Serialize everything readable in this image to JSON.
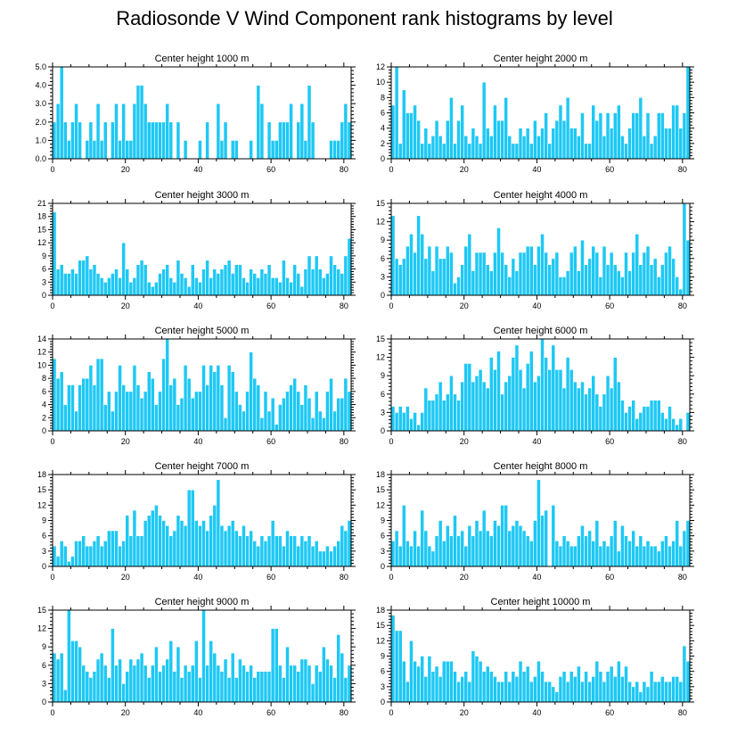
{
  "title": "Radiosonde V Wind Component rank histograms by level",
  "colors": {
    "bar": "#1ec8f4",
    "bar_edge": "#ffffff",
    "axis": "#000000"
  },
  "chart_data": [
    {
      "type": "bar",
      "title": "Center height 1000 m",
      "xlim": [
        0,
        82
      ],
      "ylim": [
        0,
        5
      ],
      "yticks": [
        0,
        1,
        2,
        3,
        4,
        5
      ],
      "ytick_labels": [
        "0.0",
        "1.0",
        "2.0",
        "3.0",
        "4.0",
        "5.0"
      ],
      "xticks": [
        0,
        20,
        40,
        60,
        80
      ],
      "values": [
        2,
        3,
        5,
        2,
        1,
        2,
        3,
        2,
        0,
        1,
        2,
        1,
        3,
        1,
        2,
        0,
        2,
        3,
        1,
        3,
        1,
        1,
        3,
        4,
        4,
        3,
        2,
        2,
        2,
        2,
        2,
        3,
        2,
        0,
        2,
        0,
        1,
        0,
        0,
        0,
        1,
        0,
        2,
        0,
        0,
        3,
        1,
        2,
        0,
        1,
        1,
        0,
        0,
        0,
        1,
        0,
        4,
        3,
        0,
        2,
        1,
        1,
        2,
        2,
        2,
        3,
        0,
        2,
        3,
        1,
        4,
        2,
        0,
        0,
        0,
        0,
        1,
        1,
        1,
        2,
        3,
        2
      ]
    },
    {
      "type": "bar",
      "title": "Center height 2000 m",
      "xlim": [
        0,
        82
      ],
      "ylim": [
        0,
        12
      ],
      "yticks": [
        0,
        2,
        4,
        6,
        8,
        10,
        12
      ],
      "ytick_labels": [
        "0",
        "2",
        "4",
        "6",
        "8",
        "10",
        "12"
      ],
      "xticks": [
        0,
        20,
        40,
        60,
        80
      ],
      "values": [
        7,
        12,
        2,
        9,
        6,
        6,
        7,
        5,
        2,
        4,
        2,
        3,
        5,
        3,
        2,
        5,
        8,
        2,
        5,
        7,
        3,
        2,
        4,
        3,
        2,
        10,
        4,
        3,
        7,
        5,
        5,
        8,
        3,
        2,
        2,
        4,
        3,
        4,
        2,
        5,
        3,
        4,
        6,
        2,
        4,
        5,
        7,
        5,
        8,
        4,
        4,
        3,
        6,
        2,
        2,
        7,
        5,
        6,
        3,
        6,
        4,
        6,
        7,
        3,
        2,
        4,
        6,
        6,
        8,
        3,
        6,
        2,
        3,
        6,
        6,
        4,
        4,
        7,
        7,
        4,
        6,
        12
      ]
    },
    {
      "type": "bar",
      "title": "Center height 3000 m",
      "xlim": [
        0,
        82
      ],
      "ylim": [
        0,
        21
      ],
      "yticks": [
        0,
        3,
        6,
        9,
        12,
        15,
        18,
        21
      ],
      "ytick_labels": [
        "0",
        "3",
        "6",
        "9",
        "12",
        "15",
        "18",
        "21"
      ],
      "xticks": [
        0,
        20,
        40,
        60,
        80
      ],
      "values": [
        19,
        6,
        7,
        5,
        5,
        6,
        5,
        8,
        8,
        9,
        6,
        7,
        5,
        4,
        3,
        4,
        5,
        6,
        4,
        12,
        6,
        3,
        4,
        7,
        8,
        7,
        3,
        2,
        3,
        5,
        6,
        7,
        4,
        3,
        8,
        5,
        4,
        2,
        7,
        4,
        3,
        6,
        8,
        4,
        6,
        5,
        6,
        7,
        8,
        5,
        7,
        7,
        4,
        3,
        6,
        5,
        4,
        6,
        5,
        7,
        4,
        4,
        3,
        8,
        4,
        3,
        7,
        5,
        2,
        6,
        9,
        6,
        9,
        6,
        4,
        5,
        9,
        7,
        6,
        5,
        9,
        13
      ]
    },
    {
      "type": "bar",
      "title": "Center height 4000 m",
      "xlim": [
        0,
        82
      ],
      "ylim": [
        0,
        15
      ],
      "yticks": [
        0,
        3,
        6,
        9,
        12,
        15
      ],
      "ytick_labels": [
        "0",
        "3",
        "6",
        "9",
        "12",
        "15"
      ],
      "xticks": [
        0,
        20,
        40,
        60,
        80
      ],
      "values": [
        13,
        6,
        5,
        6,
        8,
        10,
        7,
        13,
        10,
        6,
        8,
        4,
        8,
        6,
        6,
        8,
        7,
        2,
        3,
        5,
        8,
        10,
        4,
        7,
        7,
        7,
        5,
        4,
        7,
        11,
        7,
        5,
        3,
        6,
        4,
        7,
        7,
        8,
        8,
        5,
        8,
        10,
        7,
        5,
        6,
        7,
        3,
        3,
        4,
        7,
        8,
        4,
        9,
        5,
        6,
        8,
        7,
        3,
        8,
        5,
        7,
        5,
        4,
        3,
        7,
        4,
        7,
        10,
        5,
        7,
        8,
        5,
        6,
        3,
        5,
        7,
        8,
        6,
        3,
        1,
        15,
        9
      ]
    },
    {
      "type": "bar",
      "title": "Center height 5000 m",
      "xlim": [
        0,
        82
      ],
      "ylim": [
        0,
        14
      ],
      "yticks": [
        0,
        2,
        4,
        6,
        8,
        10,
        12,
        14
      ],
      "ytick_labels": [
        "0",
        "2",
        "4",
        "6",
        "8",
        "10",
        "12",
        "14"
      ],
      "xticks": [
        0,
        20,
        40,
        60,
        80
      ],
      "values": [
        11,
        8,
        9,
        4,
        7,
        7,
        3,
        7,
        8,
        8,
        10,
        7,
        11,
        11,
        4,
        6,
        3,
        6,
        10,
        7,
        6,
        6,
        10,
        7,
        5,
        6,
        9,
        8,
        4,
        6,
        11,
        14,
        7,
        8,
        4,
        5,
        10,
        8,
        5,
        6,
        6,
        10,
        7,
        10,
        9,
        10,
        7,
        2,
        10,
        9,
        6,
        4,
        3,
        6,
        12,
        8,
        7,
        2,
        6,
        3,
        5,
        1,
        4,
        5,
        6,
        7,
        8,
        6,
        4,
        7,
        5,
        2,
        6,
        3,
        2,
        6,
        8,
        3,
        5,
        5,
        8,
        6
      ]
    },
    {
      "type": "bar",
      "title": "Center height 6000 m",
      "xlim": [
        0,
        82
      ],
      "ylim": [
        0,
        15
      ],
      "yticks": [
        0,
        3,
        6,
        9,
        12,
        15
      ],
      "ytick_labels": [
        "0",
        "3",
        "6",
        "9",
        "12",
        "15"
      ],
      "xticks": [
        0,
        20,
        40,
        60,
        80
      ],
      "values": [
        4,
        3,
        4,
        3,
        4,
        2,
        3,
        1,
        3,
        7,
        5,
        5,
        6,
        8,
        5,
        6,
        9,
        6,
        5,
        8,
        11,
        11,
        8,
        9,
        10,
        8,
        7,
        12,
        10,
        13,
        6,
        8,
        9,
        12,
        14,
        10,
        7,
        11,
        13,
        8,
        9,
        15,
        12,
        10,
        14,
        10,
        10,
        7,
        12,
        10,
        8,
        7,
        8,
        6,
        7,
        9,
        6,
        4,
        6,
        9,
        7,
        12,
        8,
        5,
        3,
        4,
        5,
        2,
        3,
        4,
        4,
        5,
        5,
        5,
        3,
        2,
        4,
        2,
        1,
        2,
        0,
        3
      ]
    },
    {
      "type": "bar",
      "title": "Center height 7000 m",
      "xlim": [
        0,
        82
      ],
      "ylim": [
        0,
        18
      ],
      "yticks": [
        0,
        3,
        6,
        9,
        12,
        15,
        18
      ],
      "ytick_labels": [
        "0",
        "3",
        "6",
        "9",
        "12",
        "15",
        "18"
      ],
      "xticks": [
        0,
        20,
        40,
        60,
        80
      ],
      "values": [
        4,
        2,
        5,
        4,
        1,
        2,
        5,
        5,
        6,
        4,
        4,
        5,
        6,
        4,
        5,
        7,
        7,
        7,
        4,
        5,
        10,
        6,
        11,
        6,
        6,
        9,
        10,
        11,
        12,
        10,
        9,
        8,
        6,
        7,
        10,
        9,
        8,
        15,
        15,
        9,
        8,
        9,
        7,
        10,
        12,
        17,
        8,
        7,
        8,
        9,
        7,
        6,
        8,
        6,
        7,
        5,
        4,
        6,
        5,
        6,
        9,
        6,
        6,
        4,
        7,
        6,
        6,
        4,
        6,
        5,
        6,
        4,
        5,
        3,
        3,
        4,
        3,
        4,
        5,
        8,
        7,
        9
      ]
    },
    {
      "type": "bar",
      "title": "Center height 8000 m",
      "xlim": [
        0,
        82
      ],
      "ylim": [
        0,
        18
      ],
      "yticks": [
        0,
        3,
        6,
        9,
        12,
        15,
        18
      ],
      "ytick_labels": [
        "0",
        "3",
        "6",
        "9",
        "12",
        "15",
        "18"
      ],
      "xticks": [
        0,
        20,
        40,
        60,
        80
      ],
      "values": [
        5,
        7,
        4,
        12,
        5,
        4,
        7,
        4,
        11,
        7,
        4,
        3,
        6,
        9,
        5,
        8,
        6,
        10,
        6,
        7,
        4,
        8,
        6,
        9,
        7,
        11,
        7,
        6,
        9,
        8,
        12,
        12,
        7,
        8,
        9,
        8,
        7,
        6,
        5,
        9,
        17,
        10,
        11,
        0,
        12,
        5,
        4,
        6,
        5,
        4,
        4,
        6,
        8,
        6,
        7,
        5,
        9,
        4,
        5,
        4,
        6,
        9,
        3,
        8,
        6,
        5,
        7,
        4,
        6,
        4,
        5,
        4,
        4,
        3,
        5,
        6,
        4,
        5,
        9,
        4,
        7,
        9
      ]
    },
    {
      "type": "bar",
      "title": "Center height 9000 m",
      "xlim": [
        0,
        82
      ],
      "ylim": [
        0,
        15
      ],
      "yticks": [
        0,
        3,
        6,
        9,
        12,
        15
      ],
      "ytick_labels": [
        "0",
        "3",
        "6",
        "9",
        "12",
        "15"
      ],
      "xticks": [
        0,
        20,
        40,
        60,
        80
      ],
      "values": [
        8,
        7,
        8,
        2,
        15,
        10,
        10,
        9,
        6,
        5,
        4,
        5,
        7,
        8,
        6,
        4,
        12,
        6,
        7,
        3,
        5,
        7,
        6,
        7,
        8,
        6,
        4,
        6,
        9,
        5,
        6,
        7,
        10,
        5,
        9,
        4,
        6,
        5,
        6,
        10,
        4,
        15,
        6,
        10,
        8,
        6,
        5,
        7,
        4,
        8,
        4,
        7,
        6,
        5,
        6,
        4,
        5,
        5,
        5,
        5,
        12,
        12,
        6,
        4,
        9,
        6,
        6,
        5,
        7,
        7,
        6,
        3,
        6,
        5,
        9,
        7,
        6,
        4,
        11,
        8,
        4,
        6
      ]
    },
    {
      "type": "bar",
      "title": "Center height 10000 m",
      "xlim": [
        0,
        82
      ],
      "ylim": [
        0,
        18
      ],
      "yticks": [
        0,
        3,
        6,
        9,
        12,
        15,
        18
      ],
      "ytick_labels": [
        "0",
        "3",
        "6",
        "9",
        "12",
        "15",
        "18"
      ],
      "xticks": [
        0,
        20,
        40,
        60,
        80
      ],
      "values": [
        17,
        14,
        14,
        8,
        4,
        12,
        8,
        7,
        9,
        5,
        9,
        6,
        7,
        5,
        8,
        8,
        8,
        6,
        4,
        5,
        6,
        4,
        10,
        9,
        8,
        6,
        7,
        6,
        5,
        4,
        4,
        6,
        4,
        6,
        5,
        8,
        6,
        7,
        4,
        5,
        8,
        6,
        4,
        4,
        3,
        2,
        5,
        6,
        4,
        6,
        5,
        7,
        4,
        6,
        4,
        5,
        8,
        6,
        4,
        6,
        7,
        5,
        8,
        5,
        7,
        4,
        3,
        4,
        2,
        4,
        3,
        6,
        4,
        4,
        5,
        4,
        4,
        5,
        5,
        4,
        11,
        8
      ]
    }
  ]
}
